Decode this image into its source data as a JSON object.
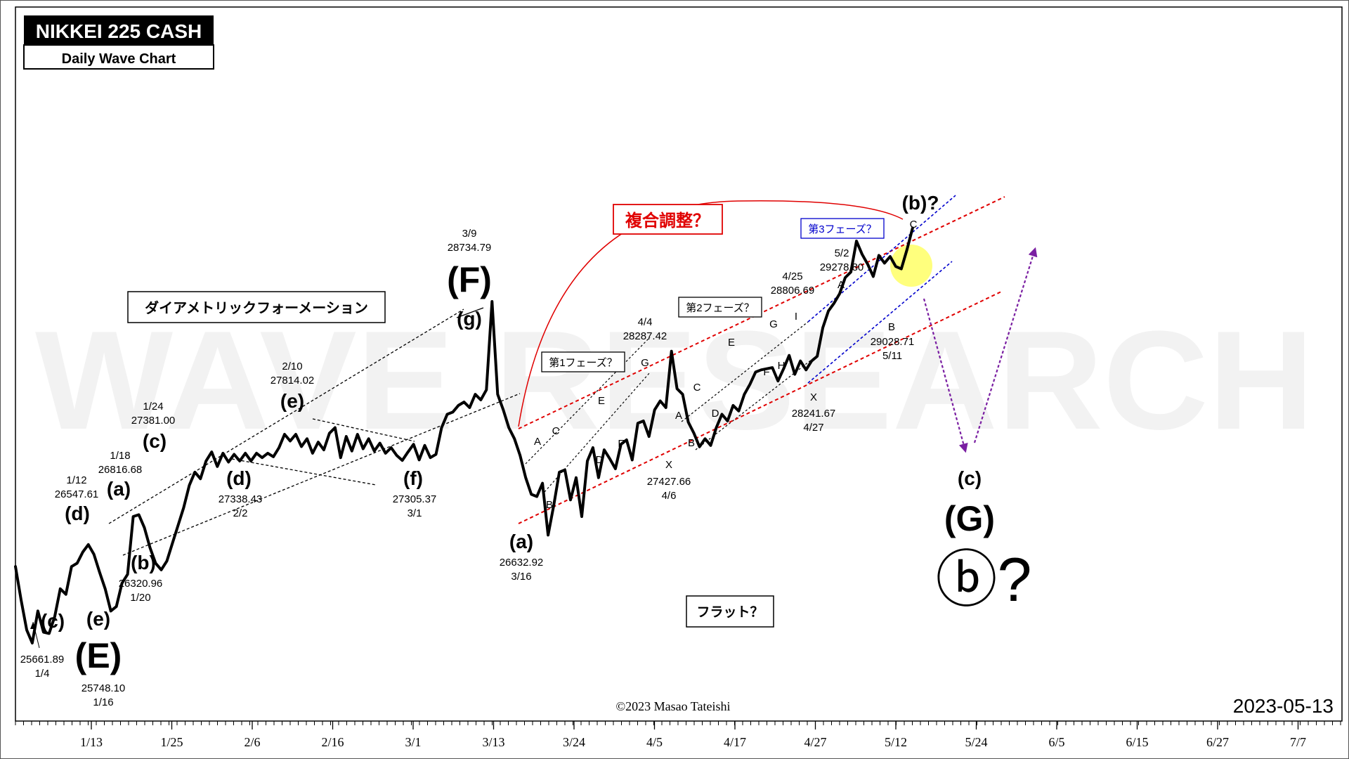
{
  "chart_data": {
    "type": "line",
    "title": "NIKKEI 225 CASH",
    "subtitle": "Daily Wave Chart",
    "watermark": "WAVE RESEARCH",
    "copyright": "©2023 Masao Tateishi",
    "date": "2023-05-13",
    "x_ticks": [
      "1/13",
      "1/25",
      "2/6",
      "2/16",
      "3/1",
      "3/13",
      "3/24",
      "4/5",
      "4/17",
      "4/27",
      "5/12",
      "5/24",
      "6/5",
      "6/15",
      "6/27",
      "7/7"
    ],
    "price_path": [
      [
        0,
        26350
      ],
      [
        3,
        26050
      ],
      [
        6,
        25780
      ],
      [
        9,
        25661.89
      ],
      [
        12,
        25950
      ],
      [
        15,
        25760
      ],
      [
        18,
        25748.1
      ],
      [
        21,
        25900
      ],
      [
        24,
        26150
      ],
      [
        27,
        26100
      ],
      [
        30,
        26350
      ],
      [
        33,
        26380
      ],
      [
        36,
        26480
      ],
      [
        39,
        26547.61
      ],
      [
        42,
        26460
      ],
      [
        45,
        26300
      ],
      [
        48,
        26150
      ],
      [
        51,
        25950
      ],
      [
        54,
        25990
      ],
      [
        57,
        26200
      ],
      [
        60,
        26280
      ],
      [
        63,
        26800
      ],
      [
        66,
        26816.68
      ],
      [
        69,
        26700
      ],
      [
        72,
        26520
      ],
      [
        75,
        26380
      ],
      [
        78,
        26320.96
      ],
      [
        81,
        26400
      ],
      [
        84,
        26560
      ],
      [
        87,
        26720
      ],
      [
        90,
        26880
      ],
      [
        93,
        27080
      ],
      [
        96,
        27200
      ],
      [
        99,
        27140
      ],
      [
        102,
        27300
      ],
      [
        105,
        27381
      ],
      [
        108,
        27250
      ],
      [
        111,
        27370
      ],
      [
        114,
        27290
      ],
      [
        117,
        27360
      ],
      [
        120,
        27300
      ],
      [
        123,
        27370
      ],
      [
        126,
        27300
      ],
      [
        129,
        27370
      ],
      [
        132,
        27330
      ],
      [
        135,
        27370
      ],
      [
        138,
        27338.43
      ],
      [
        141,
        27420
      ],
      [
        144,
        27540
      ],
      [
        147,
        27480
      ],
      [
        150,
        27540
      ],
      [
        153,
        27430
      ],
      [
        156,
        27500
      ],
      [
        159,
        27370
      ],
      [
        162,
        27470
      ],
      [
        165,
        27400
      ],
      [
        168,
        27550
      ],
      [
        171,
        27600
      ],
      [
        174,
        27330
      ],
      [
        177,
        27520
      ],
      [
        180,
        27390
      ],
      [
        183,
        27540
      ],
      [
        186,
        27410
      ],
      [
        189,
        27500
      ],
      [
        192,
        27390
      ],
      [
        195,
        27460
      ],
      [
        198,
        27370
      ],
      [
        201,
        27420
      ],
      [
        204,
        27350
      ],
      [
        207,
        27305.37
      ],
      [
        210,
        27380
      ],
      [
        213,
        27450
      ],
      [
        216,
        27310
      ],
      [
        219,
        27440
      ],
      [
        222,
        27330
      ],
      [
        225,
        27360
      ],
      [
        228,
        27600
      ],
      [
        231,
        27720
      ],
      [
        234,
        27740
      ],
      [
        237,
        27800
      ],
      [
        240,
        27830
      ],
      [
        243,
        27780
      ],
      [
        246,
        27900
      ],
      [
        249,
        27850
      ],
      [
        252,
        27940
      ],
      [
        255,
        28734.79
      ],
      [
        258,
        27900
      ],
      [
        261,
        27760
      ],
      [
        264,
        27600
      ],
      [
        267,
        27500
      ],
      [
        270,
        27350
      ],
      [
        273,
        27150
      ],
      [
        276,
        27000
      ],
      [
        279,
        26980
      ],
      [
        282,
        27100
      ],
      [
        285,
        26632.92
      ],
      [
        288,
        26900
      ],
      [
        291,
        27200
      ],
      [
        294,
        27220
      ],
      [
        297,
        26950
      ],
      [
        300,
        27150
      ],
      [
        303,
        26800
      ],
      [
        306,
        27300
      ],
      [
        309,
        27420
      ],
      [
        312,
        27150
      ],
      [
        315,
        27400
      ],
      [
        318,
        27320
      ],
      [
        321,
        27230
      ],
      [
        324,
        27450
      ],
      [
        327,
        27490
      ],
      [
        330,
        27310
      ],
      [
        333,
        27640
      ],
      [
        336,
        27660
      ],
      [
        339,
        27520
      ],
      [
        342,
        27760
      ],
      [
        345,
        27840
      ],
      [
        348,
        27780
      ],
      [
        351,
        28287.42
      ],
      [
        354,
        27950
      ],
      [
        357,
        27900
      ],
      [
        360,
        27650
      ],
      [
        363,
        27550
      ],
      [
        366,
        27427.66
      ],
      [
        369,
        27500
      ],
      [
        372,
        27440
      ],
      [
        375,
        27600
      ],
      [
        378,
        27720
      ],
      [
        381,
        27660
      ],
      [
        384,
        27800
      ],
      [
        387,
        27750
      ],
      [
        390,
        27900
      ],
      [
        393,
        27990
      ],
      [
        396,
        28100
      ],
      [
        399,
        28120
      ],
      [
        402,
        28130
      ],
      [
        405,
        28140
      ],
      [
        408,
        28020
      ],
      [
        411,
        28130
      ],
      [
        414,
        28250
      ],
      [
        417,
        28080
      ],
      [
        420,
        28200
      ],
      [
        423,
        28120
      ],
      [
        426,
        28200
      ],
      [
        429,
        28241.67
      ],
      [
        432,
        28500
      ],
      [
        435,
        28650
      ],
      [
        438,
        28720
      ],
      [
        441,
        28806.69
      ],
      [
        444,
        28950
      ],
      [
        447,
        29000
      ],
      [
        450,
        29278.8
      ],
      [
        453,
        29160
      ],
      [
        456,
        29070
      ],
      [
        459,
        28960
      ],
      [
        462,
        29150
      ],
      [
        465,
        29080
      ],
      [
        468,
        29140
      ],
      [
        471,
        29050
      ],
      [
        474,
        29028.71
      ],
      [
        477,
        29200
      ],
      [
        480,
        29394
      ]
    ],
    "wave_labels": [
      {
        "text": "(E)",
        "date": "1/16",
        "value": "25748.10"
      },
      {
        "text": "(c)",
        "date": "1/4",
        "value": "25661.89"
      },
      {
        "text": "(e)"
      },
      {
        "text": "(d)",
        "date": "1/12",
        "value": "26547.61"
      },
      {
        "text": "(a)",
        "date": "1/18",
        "value": "26816.68"
      },
      {
        "text": "(b)",
        "date": "1/20",
        "value": "26320.96"
      },
      {
        "text": "(c)",
        "date": "1/24",
        "value": "27381.00"
      },
      {
        "text": "(d)",
        "date": "2/2",
        "value": "27338.43"
      },
      {
        "text": "(e)",
        "date": "2/10",
        "value": "27814.02"
      },
      {
        "text": "(f)",
        "date": "3/1",
        "value": "27305.37"
      },
      {
        "text": "(g)"
      },
      {
        "text": "(F)",
        "date": "3/9",
        "value": "28734.79"
      },
      {
        "text": "(a)",
        "date": "3/16",
        "value": "26632.92"
      },
      {
        "text": "X",
        "date": "4/6",
        "value": "27427.66"
      },
      {
        "text": "G",
        "date": "4/4",
        "value": "28287.42"
      },
      {
        "text": "X",
        "date": "4/27",
        "value": "28241.67"
      },
      {
        "text": "I",
        "date": "4/25",
        "value": "28806.69"
      },
      {
        "text": "A",
        "date": "5/2",
        "value": "29278.80"
      },
      {
        "text": "B",
        "date": "5/11",
        "value": "29028.71"
      },
      {
        "text": "(b)?"
      },
      {
        "text": "C"
      },
      {
        "text": "(c)"
      },
      {
        "text": "(G)"
      },
      {
        "text": "ⓑ?"
      }
    ],
    "small_labels": [
      "A",
      "B",
      "C",
      "D",
      "E",
      "F",
      "G",
      "A",
      "B",
      "C",
      "D",
      "E",
      "F",
      "G",
      "H",
      "I"
    ],
    "annotations": [
      {
        "text": "ダイアメトリックフォーメーション"
      },
      {
        "text": "複合調整？",
        "color": "#e00000"
      },
      {
        "text": "第1フェーズ？"
      },
      {
        "text": "第2フェーズ？"
      },
      {
        "text": "第3フェーズ？",
        "color": "#0000cc"
      },
      {
        "text": "フラット？"
      }
    ],
    "colors": {
      "line": "#000000",
      "red_channel": "#e00000",
      "blue_channel": "#0000cc",
      "forecast": "#7a1fa2",
      "highlight": "#ffff66"
    }
  }
}
